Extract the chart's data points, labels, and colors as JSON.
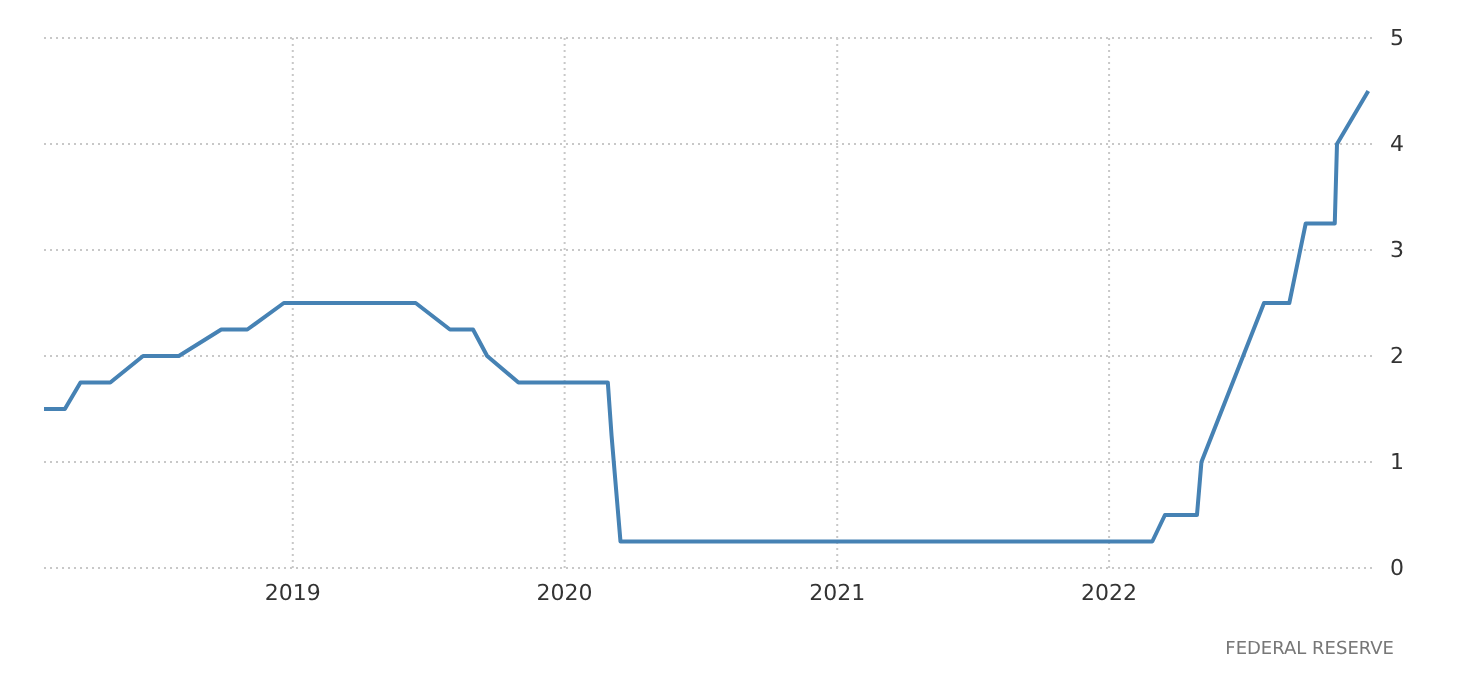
{
  "chart_data": {
    "type": "line",
    "x": [
      "2018-02-01",
      "2018-03-01",
      "2018-03-22",
      "2018-05-01",
      "2018-06-14",
      "2018-08-01",
      "2018-09-27",
      "2018-11-01",
      "2018-12-20",
      "2019-06-15",
      "2019-07-31",
      "2019-08-31",
      "2019-09-19",
      "2019-10-31",
      "2020-02-28",
      "2020-03-04",
      "2020-03-16",
      "2022-02-28",
      "2022-03-17",
      "2022-04-29",
      "2022-05-05",
      "2022-07-28",
      "2022-08-31",
      "2022-09-22",
      "2022-10-31",
      "2022-11-03",
      "2022-12-15"
    ],
    "series": [
      {
        "color": "#4682b4",
        "values": [
          1.5,
          1.5,
          1.75,
          1.75,
          2.0,
          2.0,
          2.25,
          2.25,
          2.5,
          2.5,
          2.25,
          2.25,
          2.0,
          1.75,
          1.75,
          1.25,
          0.25,
          0.25,
          0.5,
          0.5,
          1.0,
          2.5,
          2.5,
          3.25,
          3.25,
          4.0,
          4.5
        ]
      }
    ],
    "xlim": [
      "2018-02-01",
      "2022-12-20"
    ],
    "xticks": [
      {
        "value": "2019-01-01",
        "label": "2019"
      },
      {
        "value": "2020-01-01",
        "label": "2020"
      },
      {
        "value": "2021-01-01",
        "label": "2021"
      },
      {
        "value": "2022-01-01",
        "label": "2022"
      }
    ],
    "ylim": [
      0,
      5
    ],
    "yticks": [
      0,
      1,
      2,
      3,
      4,
      5
    ],
    "grid": true,
    "marker": "none",
    "line_style": "solid",
    "annotations": [
      "FEDERAL RESERVE"
    ]
  }
}
